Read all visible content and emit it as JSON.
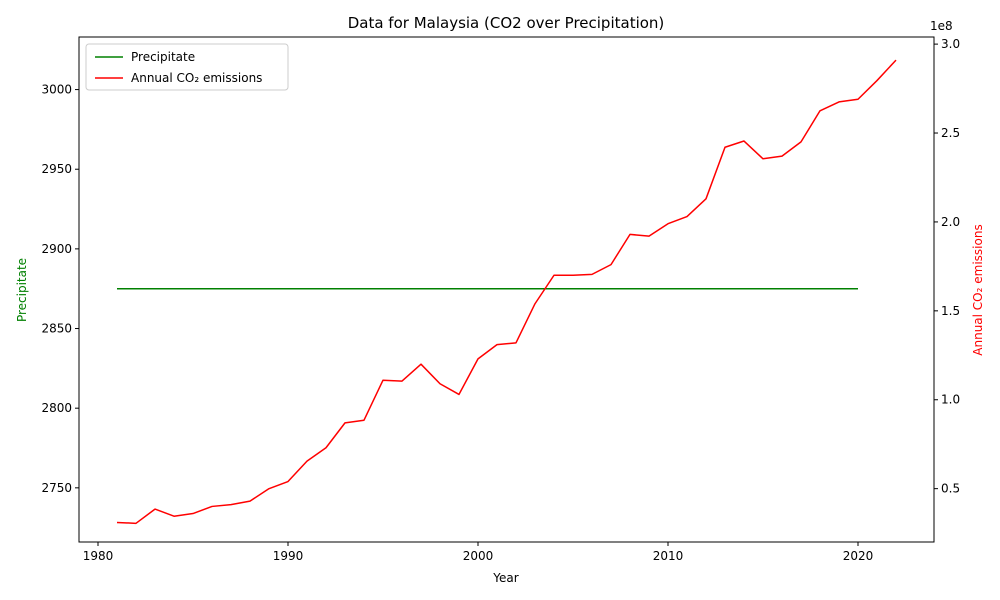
{
  "chart_data": {
    "type": "line",
    "title": "Data for Malaysia (CO2 over Precipitation)",
    "xlabel": "Year",
    "ylabel_left": "Precipitate",
    "ylabel_right": "Annual CO₂ emissions",
    "right_axis_multiplier": "1e8",
    "xlim": [
      1979,
      2024
    ],
    "ylim_left": [
      2716,
      3033
    ],
    "ylim_right": [
      20000000,
      304000000
    ],
    "x_ticks": [
      1980,
      1990,
      2000,
      2010,
      2020
    ],
    "y_left_ticks": [
      2750,
      2800,
      2850,
      2900,
      2950,
      3000
    ],
    "y_right_ticks": [
      0.5,
      1.0,
      1.5,
      2.0,
      2.5,
      3.0
    ],
    "legend_position": "upper left",
    "series": [
      {
        "name": "Precipitate",
        "axis": "left",
        "color": "#008000",
        "x": [
          1981,
          1982,
          1983,
          1984,
          1985,
          1986,
          1987,
          1988,
          1989,
          1990,
          1991,
          1992,
          1993,
          1994,
          1995,
          1996,
          1997,
          1998,
          1999,
          2000,
          2001,
          2002,
          2003,
          2004,
          2005,
          2006,
          2007,
          2008,
          2009,
          2010,
          2011,
          2012,
          2013,
          2014,
          2015,
          2016,
          2017,
          2018,
          2019,
          2020
        ],
        "values": [
          2875,
          2875,
          2875,
          2875,
          2875,
          2875,
          2875,
          2875,
          2875,
          2875,
          2875,
          2875,
          2875,
          2875,
          2875,
          2875,
          2875,
          2875,
          2875,
          2875,
          2875,
          2875,
          2875,
          2875,
          2875,
          2875,
          2875,
          2875,
          2875,
          2875,
          2875,
          2875,
          2875,
          2875,
          2875,
          2875,
          2875,
          2875,
          2875,
          2875
        ]
      },
      {
        "name": "Annual CO₂ emissions",
        "axis": "right",
        "color": "#ff0000",
        "x": [
          1981,
          1982,
          1983,
          1984,
          1985,
          1986,
          1987,
          1988,
          1989,
          1990,
          1991,
          1992,
          1993,
          1994,
          1995,
          1996,
          1997,
          1998,
          1999,
          2000,
          2001,
          2002,
          2003,
          2004,
          2005,
          2006,
          2007,
          2008,
          2009,
          2010,
          2011,
          2012,
          2013,
          2014,
          2015,
          2016,
          2017,
          2018,
          2019,
          2020,
          2021,
          2022
        ],
        "values": [
          31000000,
          30500000,
          38500000,
          34500000,
          36000000,
          40000000,
          41000000,
          43000000,
          50000000,
          54000000,
          65500000,
          73000000,
          87000000,
          88500000,
          111000000,
          110500000,
          120000000,
          109000000,
          103000000,
          123000000,
          131000000,
          132000000,
          154000000,
          170000000,
          170000000,
          170500000,
          176000000,
          193000000,
          192000000,
          199000000,
          203000000,
          213000000,
          242000000,
          245500000,
          235500000,
          237000000,
          245000000,
          262500000,
          267500000,
          269000000,
          279500000,
          291000000
        ]
      }
    ]
  }
}
